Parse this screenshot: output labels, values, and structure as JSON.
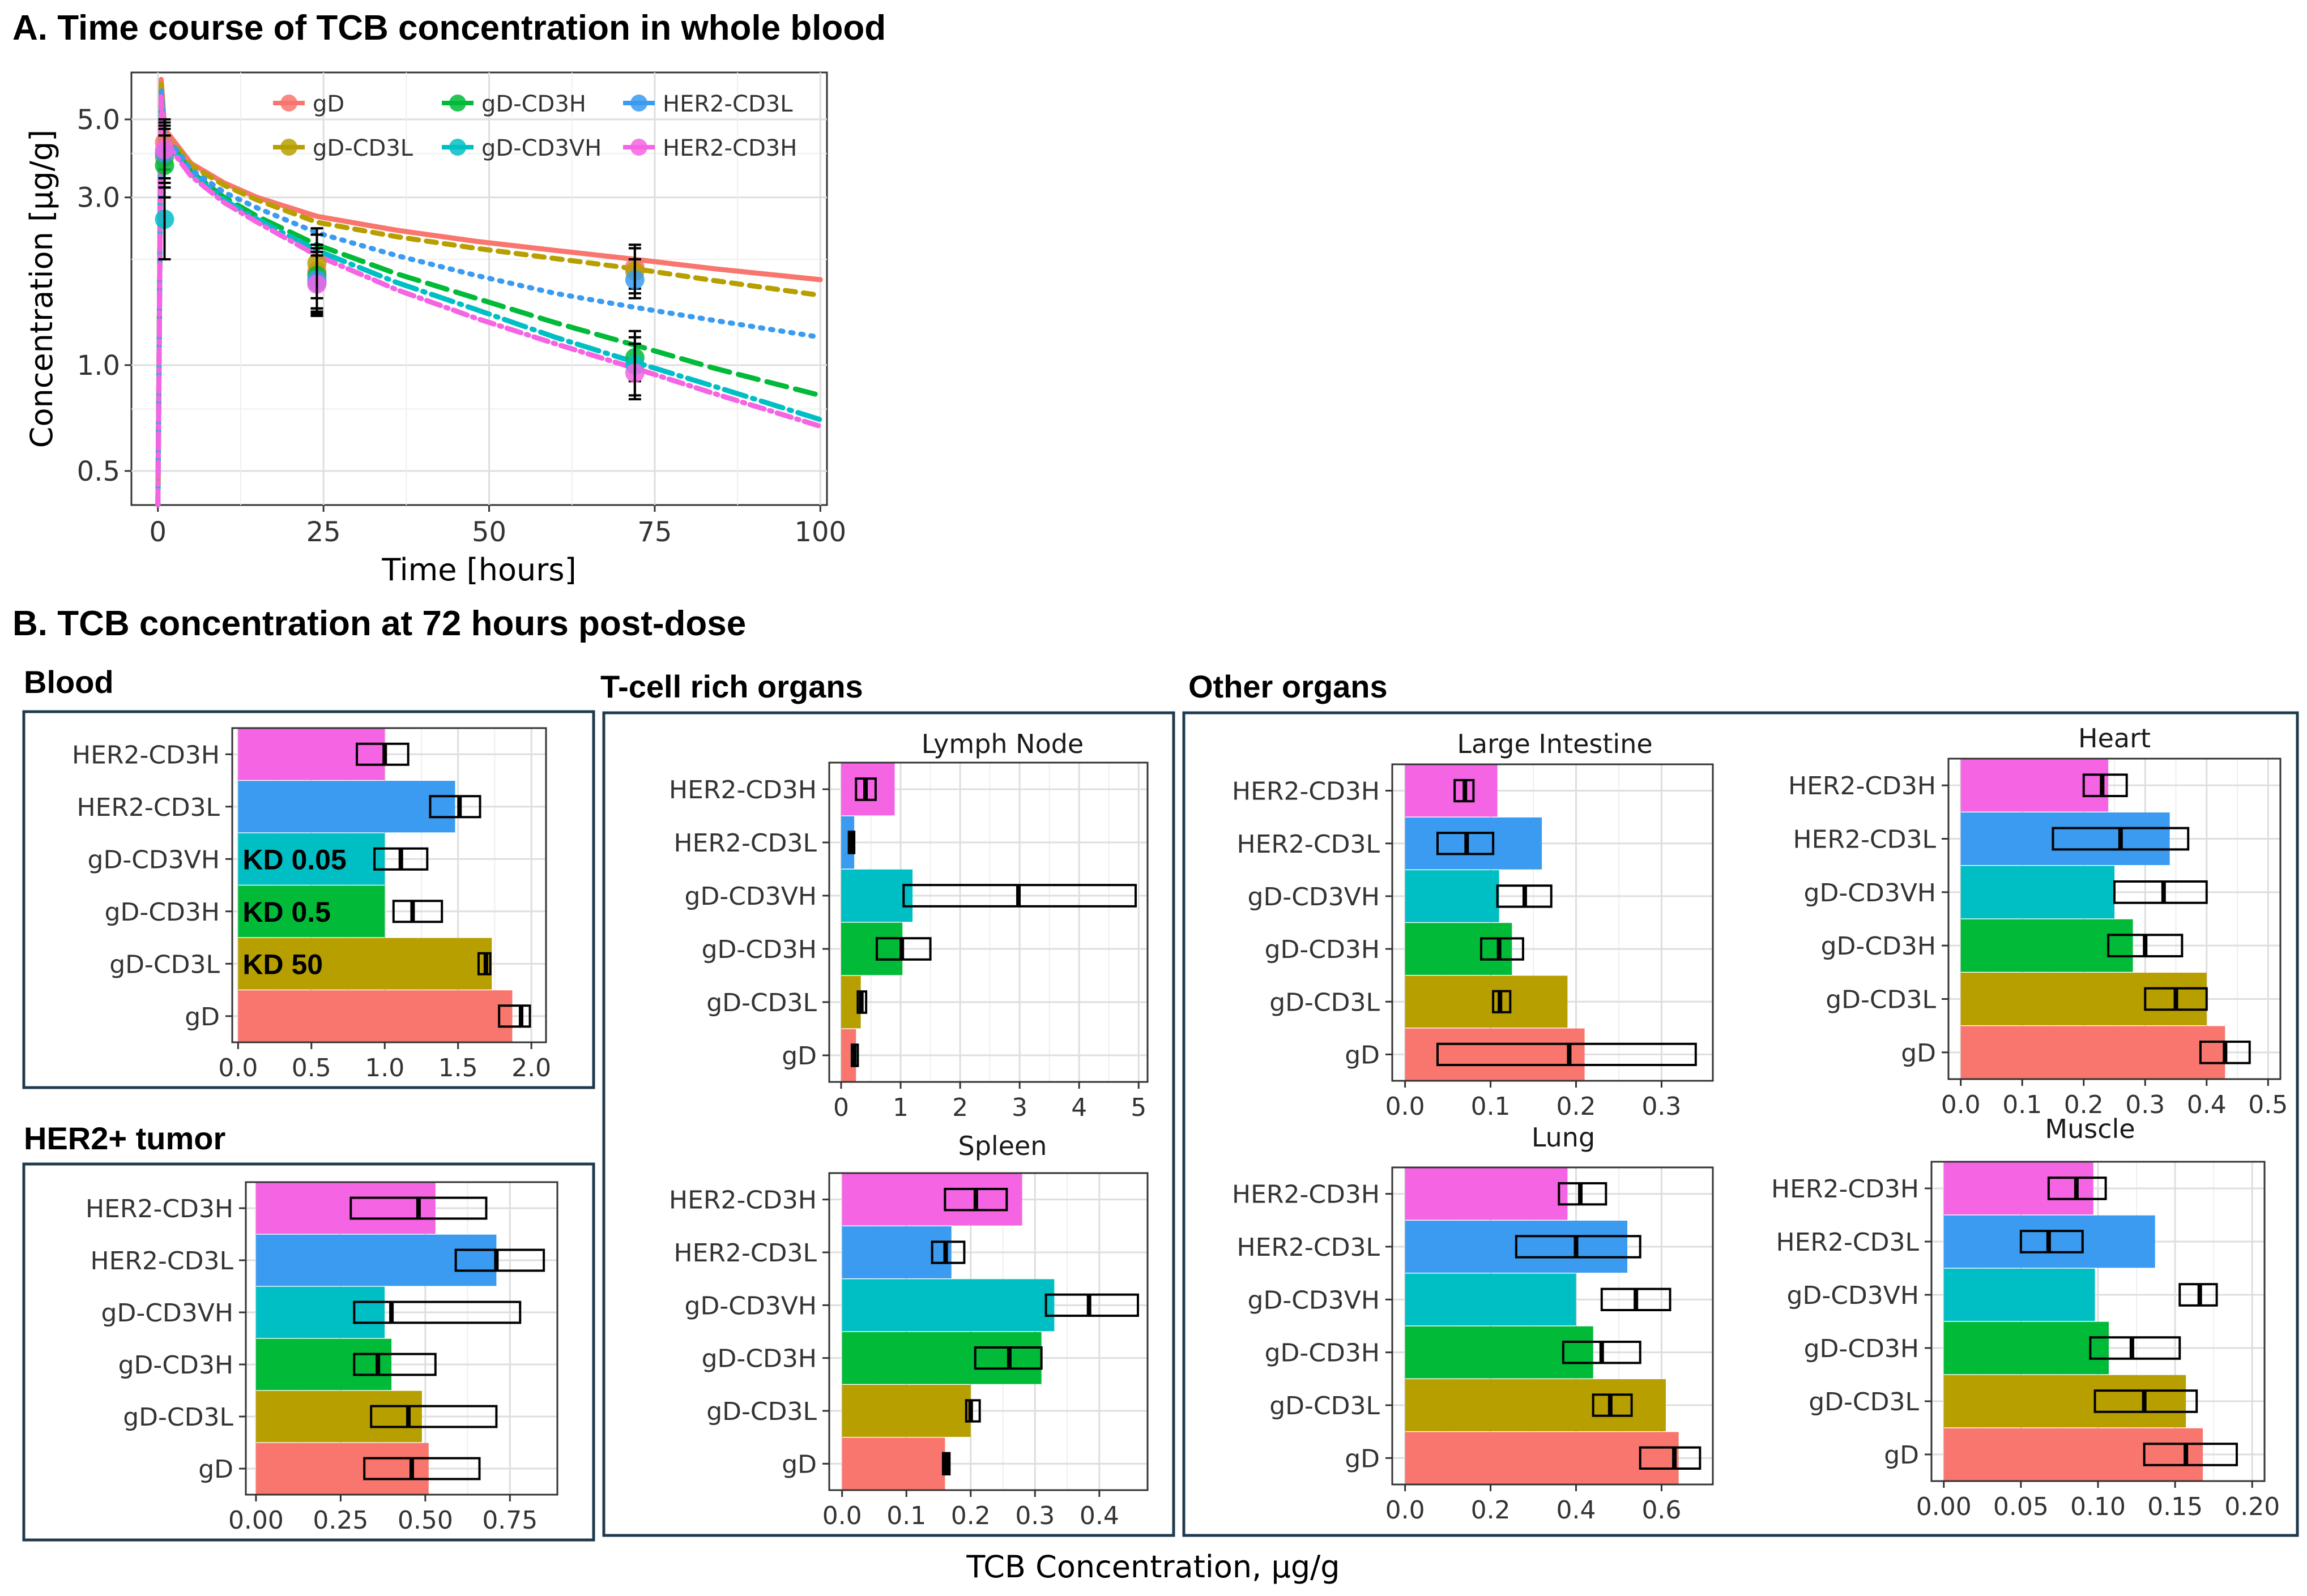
{
  "figure": {
    "title_a": "A.  Time course of TCB concentration in whole blood",
    "title_b": "B.  TCB concentration at 72 hours post-dose",
    "group_blood": "Blood",
    "group_tumor": "HER2+ tumor",
    "group_tcell": "T-cell rich organs",
    "group_other": "Other organs",
    "shared_xlabel": "TCB Concentration, µg/g"
  },
  "colors": {
    "gD": "#F8766D",
    "gD-CD3L": "#B79F00",
    "gD-CD3H": "#00BA38",
    "gD-CD3VH": "#00BFC4",
    "HER2-CD3L": "#3A9BF0",
    "HER2-CD3H": "#F564E3"
  },
  "chart_data": [
    {
      "id": "timecourse",
      "type": "line",
      "title": "Time course of TCB concentration in whole blood",
      "xlabel": "Time [hours]",
      "ylabel": "Concentration [µg/g]",
      "yscale": "log",
      "xlim": [
        -4,
        101
      ],
      "ylim": [
        0.4,
        6.8
      ],
      "xticks": [
        0,
        25,
        50,
        75,
        100
      ],
      "yticks": [
        0.5,
        1.0,
        3.0,
        5.0
      ],
      "ytick_labels": [
        "0.5",
        "1.0",
        "3.0",
        "5.0"
      ],
      "legend": [
        "gD",
        "gD-CD3L",
        "gD-CD3H",
        "gD-CD3VH",
        "HER2-CD3L",
        "HER2-CD3H"
      ],
      "series": [
        {
          "name": "gD",
          "dash": "solid",
          "x": [
            0,
            0.5,
            1,
            5,
            10,
            15,
            24,
            36,
            48,
            60,
            72,
            84,
            100
          ],
          "y": [
            0.4,
            6.5,
            4.7,
            3.75,
            3.3,
            3.0,
            2.65,
            2.42,
            2.25,
            2.12,
            2.0,
            1.88,
            1.75
          ]
        },
        {
          "name": "gD-CD3L",
          "dash": "short",
          "x": [
            0,
            0.5,
            1,
            5,
            10,
            15,
            24,
            36,
            48,
            60,
            72,
            84,
            100
          ],
          "y": [
            0.4,
            6.3,
            4.6,
            3.7,
            3.25,
            2.95,
            2.55,
            2.32,
            2.15,
            2.01,
            1.88,
            1.74,
            1.58
          ]
        },
        {
          "name": "gD-CD3H",
          "dash": "long",
          "x": [
            0,
            0.5,
            1,
            5,
            10,
            15,
            24,
            36,
            48,
            60,
            72,
            84,
            100
          ],
          "y": [
            0.4,
            6.0,
            4.5,
            3.55,
            3.0,
            2.65,
            2.2,
            1.82,
            1.55,
            1.32,
            1.14,
            0.98,
            0.82
          ]
        },
        {
          "name": "gD-CD3VH",
          "dash": "longdot",
          "x": [
            0,
            0.5,
            1,
            5,
            10,
            15,
            24,
            36,
            48,
            60,
            72,
            84,
            100
          ],
          "y": [
            0.4,
            5.9,
            4.4,
            3.5,
            2.95,
            2.6,
            2.12,
            1.72,
            1.44,
            1.2,
            1.02,
            0.87,
            0.7
          ]
        },
        {
          "name": "HER2-CD3L",
          "dash": "dot",
          "x": [
            0,
            0.5,
            1,
            5,
            10,
            15,
            24,
            36,
            48,
            60,
            72,
            84,
            100
          ],
          "y": [
            0.4,
            6.1,
            4.55,
            3.6,
            3.1,
            2.8,
            2.38,
            2.05,
            1.8,
            1.6,
            1.46,
            1.34,
            1.2
          ]
        },
        {
          "name": "HER2-CD3H",
          "dash": "dashdot",
          "x": [
            0,
            0.5,
            1,
            5,
            10,
            15,
            24,
            36,
            48,
            60,
            72,
            84,
            100
          ],
          "y": [
            0.4,
            5.8,
            4.35,
            3.45,
            2.9,
            2.55,
            2.05,
            1.64,
            1.36,
            1.15,
            0.98,
            0.83,
            0.67
          ]
        }
      ],
      "observed": [
        {
          "name": "gD",
          "x": 1,
          "y": 4.3,
          "lo": 3.6,
          "hi": 5.0
        },
        {
          "name": "gD-CD3L",
          "x": 1,
          "y": 3.9,
          "lo": 3.2,
          "hi": 4.7
        },
        {
          "name": "gD-CD3H",
          "x": 1,
          "y": 3.7,
          "lo": 3.0,
          "hi": 4.5
        },
        {
          "name": "gD-CD3VH",
          "x": 1,
          "y": 2.6,
          "lo": 2.0,
          "hi": 3.2
        },
        {
          "name": "HER2-CD3L",
          "x": 1,
          "y": 4.0,
          "lo": 3.3,
          "hi": 4.8
        },
        {
          "name": "HER2-CD3H",
          "x": 1,
          "y": 4.1,
          "lo": 3.4,
          "hi": 4.9
        },
        {
          "name": "gD",
          "x": 24,
          "y": 1.85,
          "lo": 1.45,
          "hi": 2.35
        },
        {
          "name": "gD-CD3L",
          "x": 24,
          "y": 1.95,
          "lo": 1.55,
          "hi": 2.45
        },
        {
          "name": "gD-CD3H",
          "x": 24,
          "y": 1.8,
          "lo": 1.45,
          "hi": 2.2
        },
        {
          "name": "gD-CD3VH",
          "x": 24,
          "y": 1.72,
          "lo": 1.4,
          "hi": 2.1
        },
        {
          "name": "HER2-CD3L",
          "x": 24,
          "y": 1.75,
          "lo": 1.42,
          "hi": 2.15
        },
        {
          "name": "HER2-CD3H",
          "x": 24,
          "y": 1.7,
          "lo": 1.38,
          "hi": 2.05
        },
        {
          "name": "gD",
          "x": 72,
          "y": 1.9,
          "lo": 1.65,
          "hi": 2.2
        },
        {
          "name": "gD-CD3L",
          "x": 72,
          "y": 1.85,
          "lo": 1.6,
          "hi": 2.15
        },
        {
          "name": "gD-CD3H",
          "x": 72,
          "y": 1.05,
          "lo": 0.9,
          "hi": 1.25
        },
        {
          "name": "gD-CD3VH",
          "x": 72,
          "y": 1.0,
          "lo": 0.82,
          "hi": 1.2
        },
        {
          "name": "HER2-CD3L",
          "x": 72,
          "y": 1.75,
          "lo": 1.55,
          "hi": 2.0
        },
        {
          "name": "HER2-CD3H",
          "x": 72,
          "y": 0.95,
          "lo": 0.8,
          "hi": 1.15
        }
      ]
    },
    {
      "id": "blood",
      "type": "bar",
      "orientation": "horizontal",
      "title": "Blood",
      "categories": [
        "gD",
        "gD-CD3L",
        "gD-CD3H",
        "gD-CD3VH",
        "HER2-CD3L",
        "HER2-CD3H"
      ],
      "values": [
        1.87,
        1.73,
        1.0,
        1.0,
        1.48,
        1.0
      ],
      "boxes": [
        [
          1.78,
          1.93,
          1.99
        ],
        [
          1.64,
          1.69,
          1.72
        ],
        [
          1.06,
          1.19,
          1.39
        ],
        [
          0.93,
          1.11,
          1.29
        ],
        [
          1.31,
          1.51,
          1.65
        ],
        [
          0.81,
          1.0,
          1.16
        ]
      ],
      "xlim": [
        -0.04,
        2.1
      ],
      "xticks": [
        0.0,
        0.5,
        1.0,
        1.5,
        2.0
      ],
      "xtick_labels": [
        "0.0",
        "0.5",
        "1.0",
        "1.5",
        "2.0"
      ],
      "annotations": [
        {
          "category": "gD-CD3L",
          "text": "KD 50",
          "color": "#ffffff"
        },
        {
          "category": "gD-CD3H",
          "text": "KD 0.5",
          "color": "#ffffff"
        },
        {
          "category": "gD-CD3VH",
          "text": "KD 0.05",
          "color": "#ffffff"
        }
      ]
    },
    {
      "id": "tumor",
      "type": "bar",
      "orientation": "horizontal",
      "title": "HER2+ tumor",
      "categories": [
        "gD",
        "gD-CD3L",
        "gD-CD3H",
        "gD-CD3VH",
        "HER2-CD3L",
        "HER2-CD3H"
      ],
      "values": [
        0.51,
        0.49,
        0.4,
        0.38,
        0.71,
        0.53
      ],
      "boxes": [
        [
          0.32,
          0.46,
          0.66
        ],
        [
          0.34,
          0.45,
          0.71
        ],
        [
          0.29,
          0.36,
          0.53
        ],
        [
          0.29,
          0.4,
          0.78
        ],
        [
          0.59,
          0.71,
          0.85
        ],
        [
          0.28,
          0.48,
          0.68
        ]
      ],
      "xlim": [
        -0.03,
        0.89
      ],
      "xticks": [
        0.0,
        0.25,
        0.5,
        0.75
      ],
      "xtick_labels": [
        "0.00",
        "0.25",
        "0.50",
        "0.75"
      ]
    },
    {
      "id": "lymph",
      "type": "bar",
      "orientation": "horizontal",
      "title": "Lymph Node",
      "categories": [
        "gD",
        "gD-CD3L",
        "gD-CD3H",
        "gD-CD3VH",
        "HER2-CD3L",
        "HER2-CD3H"
      ],
      "values": [
        0.25,
        0.33,
        1.03,
        1.2,
        0.22,
        0.9
      ],
      "boxes": [
        [
          0.18,
          0.22,
          0.28
        ],
        [
          0.28,
          0.34,
          0.42
        ],
        [
          0.6,
          1.02,
          1.5
        ],
        [
          1.05,
          2.98,
          4.95
        ],
        [
          0.13,
          0.17,
          0.22
        ],
        [
          0.25,
          0.41,
          0.58
        ]
      ],
      "xlim": [
        -0.2,
        5.15
      ],
      "xticks": [
        0,
        1,
        2,
        3,
        4,
        5
      ],
      "xtick_labels": [
        "0",
        "1",
        "2",
        "3",
        "4",
        "5"
      ]
    },
    {
      "id": "spleen",
      "type": "bar",
      "orientation": "horizontal",
      "title": "Spleen",
      "categories": [
        "gD",
        "gD-CD3L",
        "gD-CD3H",
        "gD-CD3VH",
        "HER2-CD3L",
        "HER2-CD3H"
      ],
      "values": [
        0.16,
        0.2,
        0.31,
        0.33,
        0.17,
        0.28
      ],
      "boxes": [
        [
          0.157,
          0.162,
          0.167
        ],
        [
          0.193,
          0.2,
          0.214
        ],
        [
          0.207,
          0.26,
          0.31
        ],
        [
          0.317,
          0.384,
          0.46
        ],
        [
          0.14,
          0.161,
          0.19
        ],
        [
          0.16,
          0.208,
          0.256
        ]
      ],
      "xlim": [
        -0.02,
        0.475
      ],
      "xticks": [
        0.0,
        0.1,
        0.2,
        0.3,
        0.4
      ],
      "xtick_labels": [
        "0.0",
        "0.1",
        "0.2",
        "0.3",
        "0.4"
      ]
    },
    {
      "id": "large_intestine",
      "type": "bar",
      "orientation": "horizontal",
      "title": "Large Intestine",
      "categories": [
        "gD",
        "gD-CD3L",
        "gD-CD3H",
        "gD-CD3VH",
        "HER2-CD3L",
        "HER2-CD3H"
      ],
      "values": [
        0.21,
        0.19,
        0.125,
        0.11,
        0.16,
        0.108
      ],
      "boxes": [
        [
          0.038,
          0.192,
          0.34
        ],
        [
          0.103,
          0.111,
          0.123
        ],
        [
          0.089,
          0.11,
          0.138
        ],
        [
          0.108,
          0.14,
          0.171
        ],
        [
          0.038,
          0.072,
          0.103
        ],
        [
          0.058,
          0.07,
          0.08
        ]
      ],
      "xlim": [
        -0.015,
        0.36
      ],
      "xticks": [
        0.0,
        0.1,
        0.2,
        0.3
      ],
      "xtick_labels": [
        "0.0",
        "0.1",
        "0.2",
        "0.3"
      ]
    },
    {
      "id": "heart",
      "type": "bar",
      "orientation": "horizontal",
      "title": "Heart",
      "categories": [
        "gD",
        "gD-CD3L",
        "gD-CD3H",
        "gD-CD3VH",
        "HER2-CD3L",
        "HER2-CD3H"
      ],
      "values": [
        0.43,
        0.4,
        0.28,
        0.25,
        0.34,
        0.24
      ],
      "boxes": [
        [
          0.39,
          0.43,
          0.47
        ],
        [
          0.3,
          0.35,
          0.4
        ],
        [
          0.24,
          0.3,
          0.36
        ],
        [
          0.25,
          0.33,
          0.4
        ],
        [
          0.15,
          0.26,
          0.37
        ],
        [
          0.2,
          0.23,
          0.27
        ]
      ],
      "xlim": [
        -0.02,
        0.52
      ],
      "xticks": [
        0.0,
        0.1,
        0.2,
        0.3,
        0.4,
        0.5
      ],
      "xtick_labels": [
        "0.0",
        "0.1",
        "0.2",
        "0.3",
        "0.4",
        "0.5"
      ]
    },
    {
      "id": "lung",
      "type": "bar",
      "orientation": "horizontal",
      "title": "Lung",
      "categories": [
        "gD",
        "gD-CD3L",
        "gD-CD3H",
        "gD-CD3VH",
        "HER2-CD3L",
        "HER2-CD3H"
      ],
      "values": [
        0.64,
        0.61,
        0.44,
        0.4,
        0.52,
        0.38
      ],
      "boxes": [
        [
          0.55,
          0.63,
          0.69
        ],
        [
          0.44,
          0.48,
          0.53
        ],
        [
          0.37,
          0.46,
          0.55
        ],
        [
          0.46,
          0.54,
          0.62
        ],
        [
          0.26,
          0.4,
          0.55
        ],
        [
          0.36,
          0.41,
          0.47
        ]
      ],
      "xlim": [
        -0.03,
        0.72
      ],
      "xticks": [
        0.0,
        0.2,
        0.4,
        0.6
      ],
      "xtick_labels": [
        "0.0",
        "0.2",
        "0.4",
        "0.6"
      ]
    },
    {
      "id": "muscle",
      "type": "bar",
      "orientation": "horizontal",
      "title": "Muscle",
      "categories": [
        "gD",
        "gD-CD3L",
        "gD-CD3H",
        "gD-CD3VH",
        "HER2-CD3L",
        "HER2-CD3H"
      ],
      "values": [
        0.168,
        0.157,
        0.107,
        0.098,
        0.137,
        0.097
      ],
      "boxes": [
        [
          0.13,
          0.157,
          0.19
        ],
        [
          0.098,
          0.13,
          0.164
        ],
        [
          0.095,
          0.122,
          0.153
        ],
        [
          0.153,
          0.166,
          0.177
        ],
        [
          0.05,
          0.068,
          0.09
        ],
        [
          0.068,
          0.086,
          0.105
        ]
      ],
      "xlim": [
        -0.008,
        0.208
      ],
      "xticks": [
        0.0,
        0.05,
        0.1,
        0.15,
        0.2
      ],
      "xtick_labels": [
        "0.00",
        "0.05",
        "0.10",
        "0.15",
        "0.20"
      ]
    }
  ]
}
